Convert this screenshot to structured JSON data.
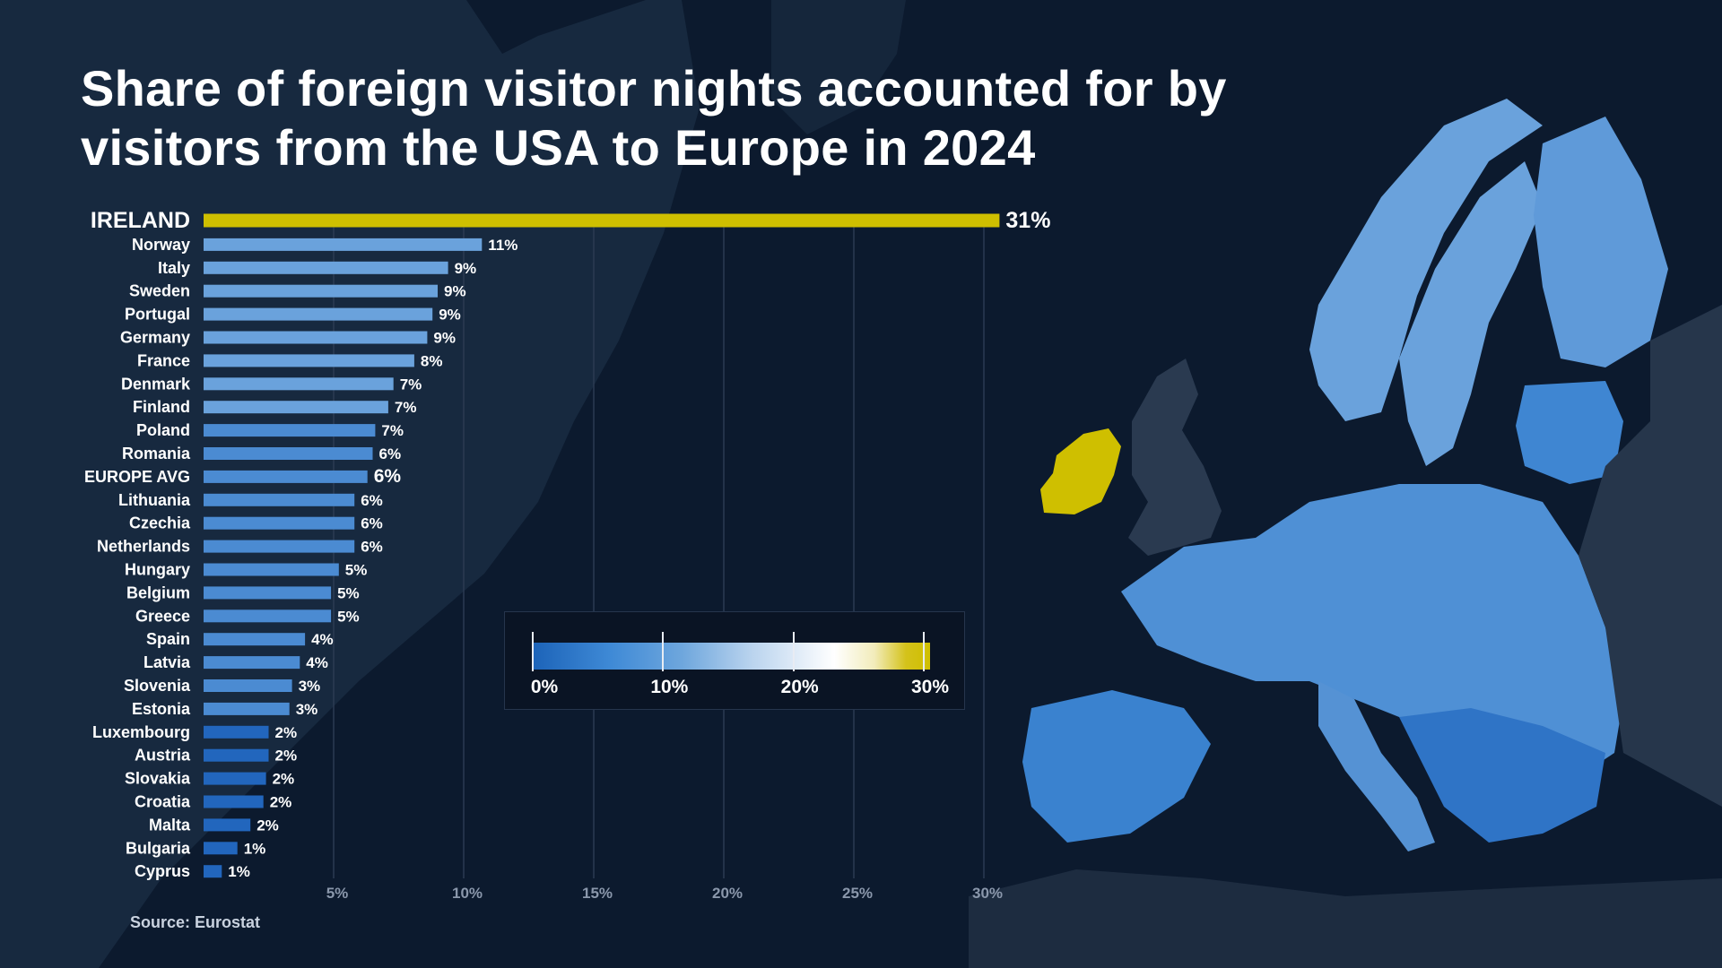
{
  "title": "Share of foreign visitor nights accounted for by visitors from the USA to Europe in 2024",
  "source": "Source: Eurostat",
  "colors": {
    "highlight": "#cfbf00",
    "bar_high": "#6aa2dc",
    "bar_mid": "#4b8bd2",
    "bar_low": "#2266bd",
    "background": "#0c1a2e"
  },
  "legend": {
    "labels": [
      "0%",
      "10%",
      "20%",
      "30%"
    ],
    "values": [
      0,
      10,
      20,
      30
    ]
  },
  "chart_data": {
    "type": "bar",
    "orientation": "horizontal",
    "title": "Share of foreign visitor nights accounted for by visitors from the USA to Europe in 2024",
    "categories": [
      "IRELAND",
      "Norway",
      "Italy",
      "Sweden",
      "Portugal",
      "Germany",
      "France",
      "Denmark",
      "Finland",
      "Poland",
      "Romania",
      "EUROPE AVG",
      "Lithuania",
      "Czechia",
      "Netherlands",
      "Hungary",
      "Belgium",
      "Greece",
      "Spain",
      "Latvia",
      "Slovenia",
      "Estonia",
      "Luxembourg",
      "Austria",
      "Slovakia",
      "Croatia",
      "Malta",
      "Bulgaria",
      "Cyprus"
    ],
    "values": [
      30.6,
      10.7,
      9.4,
      9.0,
      8.8,
      8.6,
      8.1,
      7.3,
      7.1,
      6.6,
      6.5,
      6.3,
      5.8,
      5.8,
      5.8,
      5.2,
      4.9,
      4.9,
      3.9,
      3.7,
      3.4,
      3.3,
      2.5,
      2.5,
      2.4,
      2.3,
      1.8,
      1.3,
      0.7
    ],
    "data_labels": [
      "31%",
      "11%",
      "9%",
      "9%",
      "9%",
      "9%",
      "8%",
      "7%",
      "7%",
      "7%",
      "6%",
      "6%",
      "6%",
      "6%",
      "6%",
      "5%",
      "5%",
      "5%",
      "4%",
      "4%",
      "3%",
      "3%",
      "2%",
      "2%",
      "2%",
      "2%",
      "2%",
      "1%",
      "1%"
    ],
    "highlight_categories": [
      "IRELAND",
      "EUROPE AVG"
    ],
    "x_ticks": [
      5,
      10,
      15,
      20,
      25,
      30
    ],
    "x_tick_labels": [
      "5%",
      "10%",
      "15%",
      "20%",
      "25%",
      "30%"
    ],
    "xlim": [
      0,
      30
    ],
    "grid": true
  }
}
